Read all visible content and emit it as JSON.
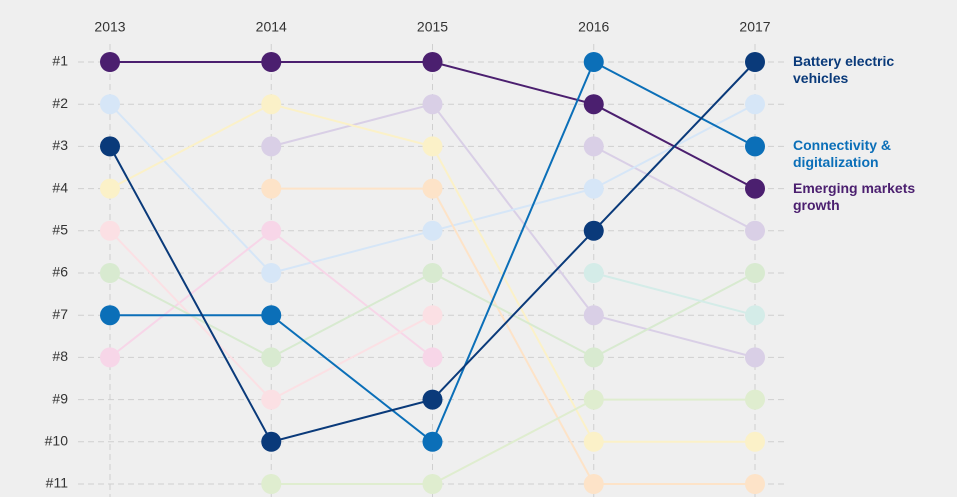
{
  "chart_data": {
    "type": "line",
    "categories": [
      "2013",
      "2014",
      "2015",
      "2016",
      "2017"
    ],
    "ylim": [
      1,
      11
    ],
    "yticks": [
      {
        "value": 1,
        "label": "#1"
      },
      {
        "value": 2,
        "label": "#2"
      },
      {
        "value": 3,
        "label": "#3"
      },
      {
        "value": 4,
        "label": "#4"
      },
      {
        "value": 5,
        "label": "#5"
      },
      {
        "value": 6,
        "label": "#6"
      },
      {
        "value": 7,
        "label": "#7"
      },
      {
        "value": 8,
        "label": "#8"
      },
      {
        "value": 9,
        "label": "#9"
      },
      {
        "value": 10,
        "label": "#10"
      },
      {
        "value": 11,
        "label": "#11"
      }
    ],
    "inverted": true,
    "grid": true,
    "series": [
      {
        "color": "#d9cfe6",
        "values": [
          null,
          3,
          2,
          7,
          8
        ]
      },
      {
        "color": "#d9cfe6",
        "values": [
          null,
          null,
          null,
          3,
          5
        ]
      },
      {
        "color": "#d6e6f7",
        "values": [
          2,
          6,
          5,
          4,
          2
        ]
      },
      {
        "color": "#fbf1c8",
        "values": [
          4,
          2,
          3,
          10,
          10
        ]
      },
      {
        "color": "#fde3c8",
        "values": [
          null,
          4,
          4,
          11,
          11
        ]
      },
      {
        "color": "#f7d6e8",
        "values": [
          8,
          5,
          8,
          null,
          null
        ]
      },
      {
        "color": "#fbe0e4",
        "values": [
          5,
          9,
          7,
          null,
          null
        ]
      },
      {
        "color": "#d8ead0",
        "values": [
          6,
          8,
          6,
          8,
          6
        ]
      },
      {
        "color": "#dfedcf",
        "values": [
          null,
          11,
          11,
          9,
          9
        ]
      },
      {
        "color": "#d4ece8",
        "values": [
          null,
          null,
          null,
          6,
          7
        ]
      },
      {
        "name": "Emerging markets growth",
        "color": "#4b1f6f",
        "values": [
          1,
          1,
          1,
          2,
          4
        ]
      },
      {
        "name": "Connectivity & digitalization",
        "color": "#0b6fb8",
        "values": [
          7,
          7,
          10,
          1,
          3
        ]
      },
      {
        "name": "Battery electric vehicles",
        "color": "#0a3a7a",
        "values": [
          3,
          10,
          9,
          5,
          1
        ]
      }
    ]
  }
}
